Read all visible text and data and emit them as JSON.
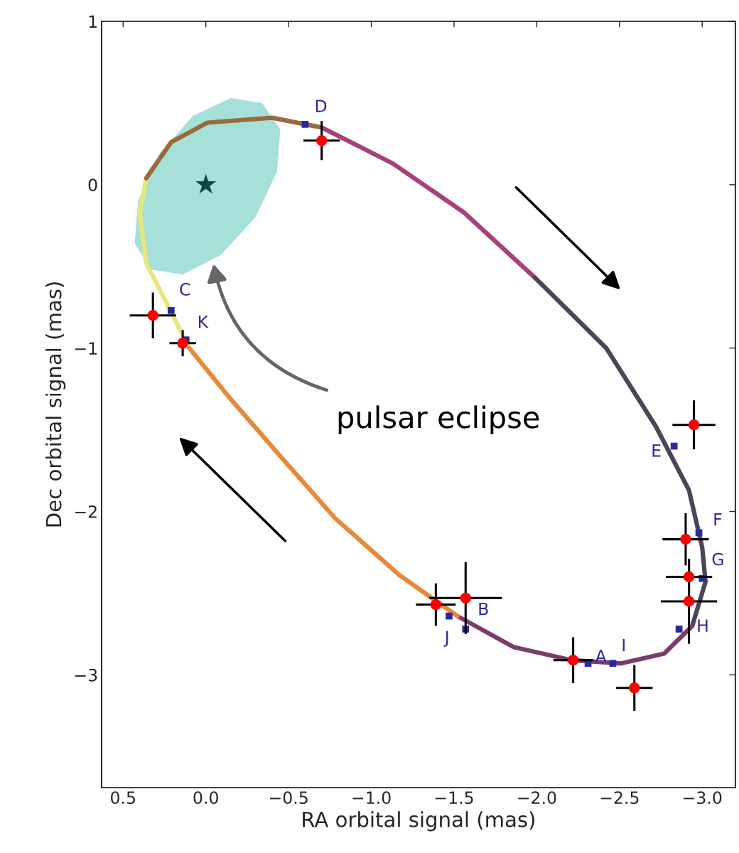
{
  "chart_data": {
    "type": "scatter",
    "xlabel": "RA orbital signal (mas)",
    "ylabel": "Dec orbital signal (mas)",
    "xlim": [
      0.63,
      -3.2
    ],
    "ylim": [
      -3.69,
      1
    ],
    "xticks": [
      {
        "value": 0.5,
        "label": "0.5"
      },
      {
        "value": 0,
        "label": "0.0"
      },
      {
        "value": -0.5,
        "label": "−0.5"
      },
      {
        "value": -1,
        "label": "−1.0"
      },
      {
        "value": -1.5,
        "label": "−1.5"
      },
      {
        "value": -2,
        "label": "−2.0"
      },
      {
        "value": -2.5,
        "label": "−2.5"
      },
      {
        "value": -3,
        "label": "−3.0"
      }
    ],
    "yticks": [
      {
        "value": 1,
        "label": "1"
      },
      {
        "value": 0,
        "label": "0"
      },
      {
        "value": -1,
        "label": "−1"
      },
      {
        "value": -2,
        "label": "−2"
      },
      {
        "value": -3,
        "label": "−3"
      }
    ],
    "grid": false,
    "legend": false,
    "annotations": [
      "pulsar eclipse"
    ],
    "series": [
      {
        "type": "line",
        "color": "#e6e87c",
        "x": [
          0.1,
          0.23,
          0.36,
          0.4,
          0.36
        ],
        "values": [
          -1.0,
          -0.74,
          -0.48,
          -0.17,
          0.04
        ]
      },
      {
        "type": "line",
        "color": "#9a6a3c",
        "x": [
          0.36,
          0.21,
          -0.01,
          -0.4,
          -0.7
        ],
        "values": [
          0.04,
          0.26,
          0.38,
          0.41,
          0.35
        ]
      },
      {
        "type": "line",
        "color": "#a8407a",
        "x": [
          -0.7,
          -1.13,
          -1.56,
          -1.99
        ],
        "values": [
          0.35,
          0.13,
          -0.17,
          -0.57
        ]
      },
      {
        "type": "line",
        "color": "#4a4656",
        "x": [
          -1.99,
          -2.42,
          -2.72,
          -2.92,
          -3.0,
          -3.02,
          -2.94
        ],
        "values": [
          -0.57,
          -1.0,
          -1.48,
          -1.87,
          -2.22,
          -2.43,
          -2.7
        ]
      },
      {
        "type": "line",
        "color": "#7a3c6a",
        "x": [
          -2.94,
          -2.77,
          -2.51,
          -2.21,
          -1.86,
          -1.52
        ],
        "values": [
          -2.7,
          -2.87,
          -2.93,
          -2.91,
          -2.83,
          -2.64
        ]
      },
      {
        "type": "line",
        "color": "#e8893a",
        "x": [
          -1.52,
          -1.17,
          -0.78,
          -0.44,
          -0.14,
          0.1
        ],
        "values": [
          -2.64,
          -2.39,
          -2.04,
          -1.65,
          -1.3,
          -1.0
        ]
      },
      {
        "type": "area",
        "color": "#8fd8cf",
        "x": [
          -0.34,
          -0.45,
          -0.43,
          -0.3,
          -0.09,
          0.14,
          0.33,
          0.43,
          0.41,
          0.28,
          0.08,
          -0.15
        ],
        "values": [
          0.5,
          0.34,
          0.08,
          -0.2,
          -0.43,
          -0.55,
          -0.52,
          -0.36,
          -0.1,
          0.19,
          0.42,
          0.53
        ]
      },
      {
        "marker": "star",
        "color": "#0b4a42",
        "x": [
          0.0
        ],
        "values": [
          0.0
        ]
      },
      {
        "marker": "square",
        "color": "#2a2aa0",
        "x": [
          -2.31,
          -1.57,
          0.21,
          -0.6,
          -2.83,
          -2.98,
          -3.0,
          -2.86,
          -2.46,
          -1.47,
          0.12
        ],
        "values": [
          -2.93,
          -2.72,
          -0.77,
          0.37,
          -1.6,
          -2.13,
          -2.41,
          -2.72,
          -2.93,
          -2.64,
          -0.95
        ],
        "value_labels": [
          "A",
          "B",
          "C",
          "D",
          "E",
          "F",
          "G",
          "H",
          "I",
          "J",
          "K"
        ]
      },
      {
        "marker": "circle",
        "color": "#ff0000",
        "x": [
          -2.22,
          -1.57,
          0.32,
          -0.7,
          -2.95,
          -2.9,
          -2.92,
          -2.92,
          -2.59,
          -1.39,
          0.14
        ],
        "values": [
          -2.91,
          -2.53,
          -0.8,
          0.27,
          -1.47,
          -2.17,
          -2.4,
          -2.55,
          -3.08,
          -2.57,
          -0.97
        ],
        "errors": [
          0.14,
          0.22,
          0.14,
          0.12,
          0.15,
          0.16,
          0.1,
          0.26,
          0.14,
          0.13,
          0.08
        ],
        "xerrors": [
          0.12,
          0.22,
          0.14,
          0.11,
          0.13,
          0.14,
          0.14,
          0.17,
          0.11,
          0.12,
          0.08
        ]
      }
    ]
  }
}
